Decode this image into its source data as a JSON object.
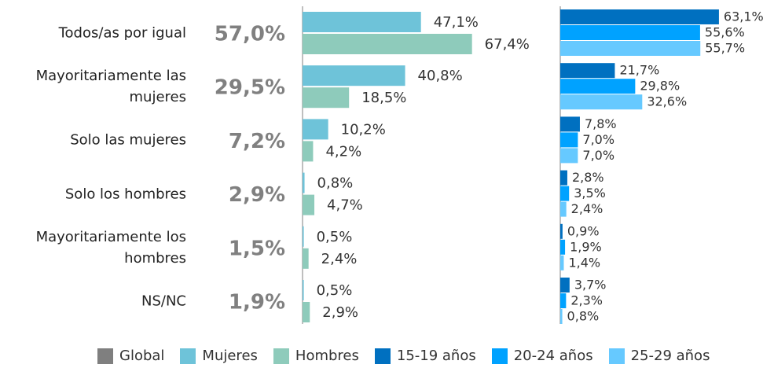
{
  "chart_data": {
    "type": "bar",
    "categories": [
      "Todos/as por igual",
      "Mayoritariamente las mujeres",
      "Solo las mujeres",
      "Solo los hombres",
      "Mayoritariamente los hombres",
      "NS/NC"
    ],
    "series": [
      {
        "name": "Global",
        "color": "#7f7f7f",
        "values": [
          57.0,
          29.5,
          7.2,
          2.9,
          1.5,
          1.9
        ],
        "value_labels": [
          "57,0%",
          "29,5%",
          "7,2%",
          "2,9%",
          "1,5%",
          "1,9%"
        ]
      },
      {
        "name": "Mujeres",
        "color": "#6ec3d9",
        "values": [
          47.1,
          40.8,
          10.2,
          0.8,
          0.5,
          0.5
        ],
        "value_labels": [
          "47,1%",
          "40,8%",
          "10,2%",
          "0,8%",
          "0,5%",
          "0,5%"
        ]
      },
      {
        "name": "Hombres",
        "color": "#8ecbbb",
        "values": [
          67.4,
          18.5,
          4.2,
          4.7,
          2.4,
          2.9
        ],
        "value_labels": [
          "67,4%",
          "18,5%",
          "4,2%",
          "4,7%",
          "2,4%",
          "2,9%"
        ]
      },
      {
        "name": "15-19 años",
        "color": "#0070c0",
        "values": [
          63.1,
          21.7,
          7.8,
          2.8,
          0.9,
          3.7
        ],
        "value_labels": [
          "63,1%",
          "21,7%",
          "7,8%",
          "2,8%",
          "0,9%",
          "3,7%"
        ]
      },
      {
        "name": "20-24 años",
        "color": "#00a2ff",
        "values": [
          55.6,
          29.8,
          7.0,
          3.5,
          1.9,
          2.3
        ],
        "value_labels": [
          "55,6%",
          "29,8%",
          "7,0%",
          "3,5%",
          "1,9%",
          "2,3%"
        ]
      },
      {
        "name": "25-29 años",
        "color": "#66c9ff",
        "values": [
          55.7,
          32.6,
          7.0,
          2.4,
          1.4,
          0.8
        ],
        "value_labels": [
          "55,7%",
          "32,6%",
          "7,0%",
          "2,4%",
          "1,4%",
          "0,8%"
        ]
      }
    ]
  }
}
